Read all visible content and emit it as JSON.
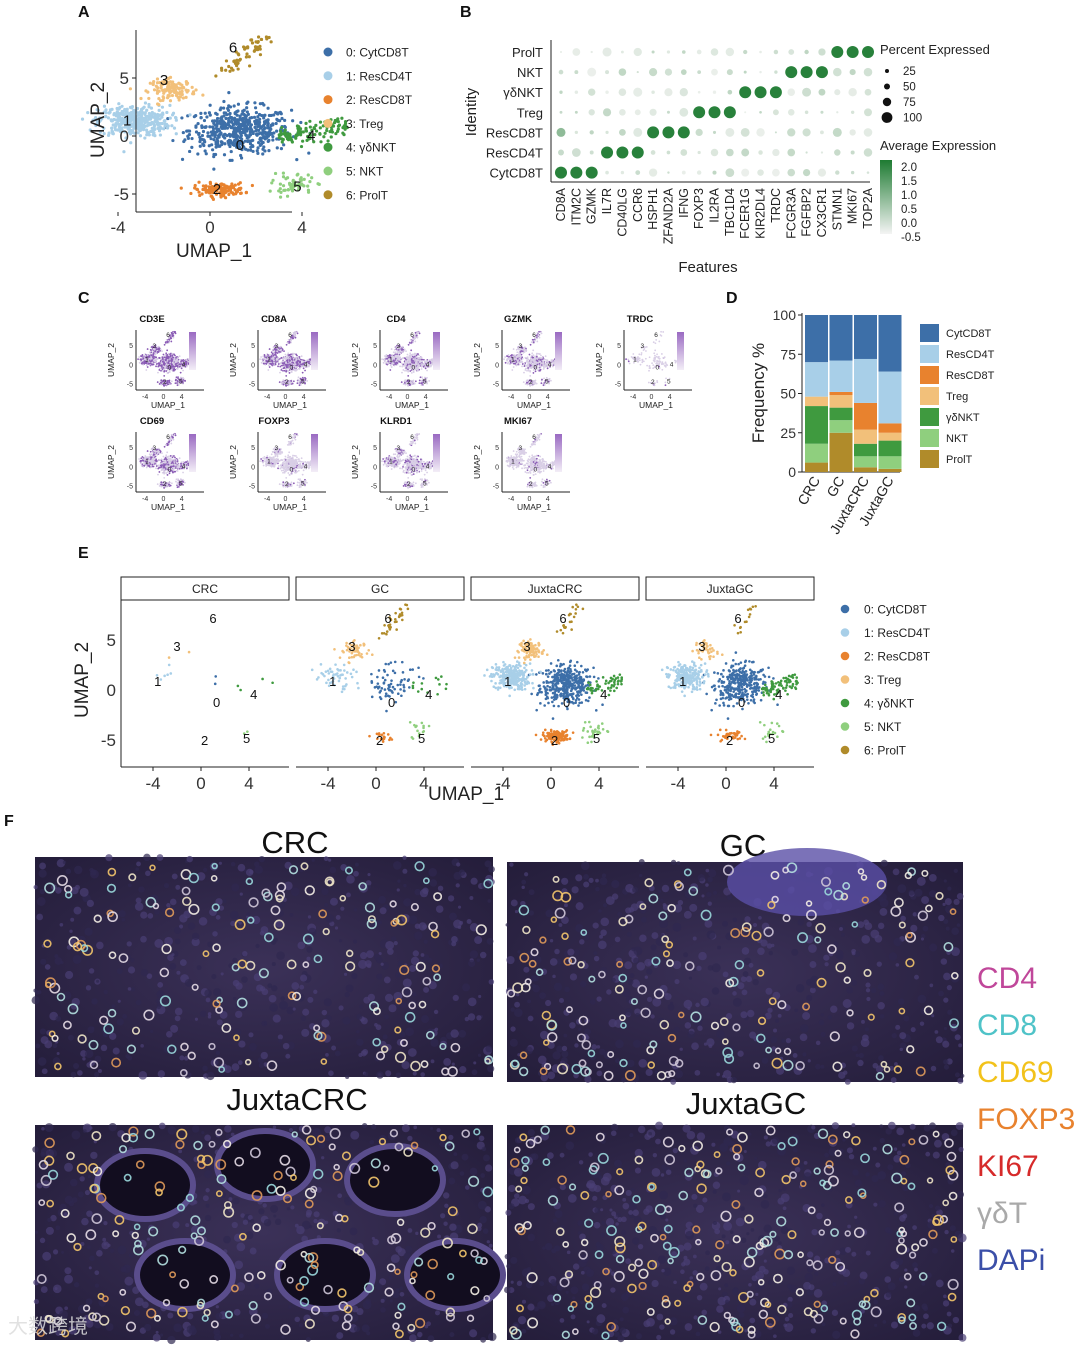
{
  "panels": {
    "A": "A",
    "B": "B",
    "C": "C",
    "D": "D",
    "E": "E",
    "F": "F"
  },
  "clusters": [
    {
      "id": "0",
      "label": "0: CytCD8T",
      "short": "CytCD8T",
      "color": "#3d6fa8"
    },
    {
      "id": "1",
      "label": "1: ResCD4T",
      "short": "ResCD4T",
      "color": "#a8cfe8"
    },
    {
      "id": "2",
      "label": "2: ResCD8T",
      "short": "ResCD8T",
      "color": "#e8822e"
    },
    {
      "id": "3",
      "label": "3: Treg",
      "short": "Treg",
      "color": "#f2c07a"
    },
    {
      "id": "4",
      "label": "4: γδNKT",
      "short": "γδNKT",
      "color": "#3f9a3f"
    },
    {
      "id": "5",
      "label": "5: NKT",
      "short": "NKT",
      "color": "#8fcf7e"
    },
    {
      "id": "6",
      "label": "6: ProlT",
      "short": "ProlT",
      "color": "#b08b2a"
    }
  ],
  "umap": {
    "xlabel": "UMAP_1",
    "ylabel": "UMAP_2",
    "xticks": [
      "-4",
      "0",
      "4"
    ],
    "yticks": [
      "5",
      "0",
      "-5"
    ],
    "cluster_numbers": [
      "0",
      "1",
      "2",
      "3",
      "4",
      "5",
      "6"
    ]
  },
  "dotplot": {
    "ylabel": "Identity",
    "xlabel": "Features",
    "identities": [
      "ProlT",
      "NKT",
      "γδNKT",
      "Treg",
      "ResCD8T",
      "ResCD4T",
      "CytCD8T"
    ],
    "features": [
      "CD8A",
      "ITM2C",
      "GZMK",
      "IL7R",
      "CD40LG",
      "CCR6",
      "HSPH1",
      "ZFAND2A",
      "IFNG",
      "FOXP3",
      "IL2RA",
      "TBC1D4",
      "FCER1G",
      "KIR2DL4",
      "TRDC",
      "FCGR3A",
      "FGFBP2",
      "CX3CR1",
      "STMN1",
      "MKI67",
      "TOP2A"
    ],
    "size_legend_title": "Percent Expressed",
    "size_legend": [
      "25",
      "50",
      "75",
      "100"
    ],
    "color_legend_title": "Average Expression",
    "color_legend": [
      "2.0",
      "1.5",
      "1.0",
      "0.5",
      "0.0",
      "-0.5"
    ]
  },
  "feature_plots": {
    "genes": [
      "CD3E",
      "CD8A",
      "CD4",
      "GZMK",
      "TRDC",
      "CD69",
      "FOXP3",
      "KLRD1",
      "MKI67"
    ],
    "xlabel": "UMAP_1",
    "ylabel": "UMAP_2",
    "xticks": [
      "-4",
      "0",
      "4"
    ],
    "yticks": [
      "5",
      "0",
      "-5"
    ]
  },
  "chart_data": [
    {
      "type": "bar",
      "title": "",
      "xlabel": "",
      "ylabel": "Frequency %",
      "categories": [
        "CRC",
        "GC",
        "JuxtaCRC",
        "JuxtaGC"
      ],
      "ylim": [
        0,
        100
      ],
      "yticks": [
        "100",
        "75",
        "50",
        "25",
        "0"
      ],
      "series": [
        {
          "name": "ProlT",
          "values": [
            6,
            25,
            3,
            2
          ]
        },
        {
          "name": "NKT",
          "values": [
            12,
            8,
            7,
            8
          ]
        },
        {
          "name": "γδNKT",
          "values": [
            24,
            8,
            8,
            10
          ]
        },
        {
          "name": "Treg",
          "values": [
            6,
            8,
            9,
            5
          ]
        },
        {
          "name": "ResCD8T",
          "values": [
            0,
            2,
            17,
            6
          ]
        },
        {
          "name": "ResCD4T",
          "values": [
            22,
            20,
            28,
            33
          ]
        },
        {
          "name": "CytCD8T",
          "values": [
            30,
            29,
            28,
            36
          ]
        }
      ],
      "legend_order": [
        "CytCD8T",
        "ResCD4T",
        "ResCD8T",
        "Treg",
        "γδNKT",
        "NKT",
        "ProlT"
      ]
    }
  ],
  "split_umap": {
    "facets": [
      "CRC",
      "GC",
      "JuxtaCRC",
      "JuxtaGC"
    ],
    "xlabel": "UMAP_1",
    "ylabel": "UMAP_2"
  },
  "microscopy": {
    "titles": [
      "CRC",
      "GC",
      "JuxtaCRC",
      "JuxtaGC"
    ],
    "markers": [
      {
        "name": "CD4",
        "color": "#c0479a"
      },
      {
        "name": "CD8",
        "color": "#4fc3c8"
      },
      {
        "name": "CD69",
        "color": "#f2c21b"
      },
      {
        "name": "FOXP3",
        "color": "#e8822e"
      },
      {
        "name": "KI67",
        "color": "#d62a2a"
      },
      {
        "name": "γδT",
        "color": "#a9a9a9"
      },
      {
        "name": "DAPi",
        "color": "#3b4fa8"
      }
    ]
  },
  "watermark": "大数跨境"
}
